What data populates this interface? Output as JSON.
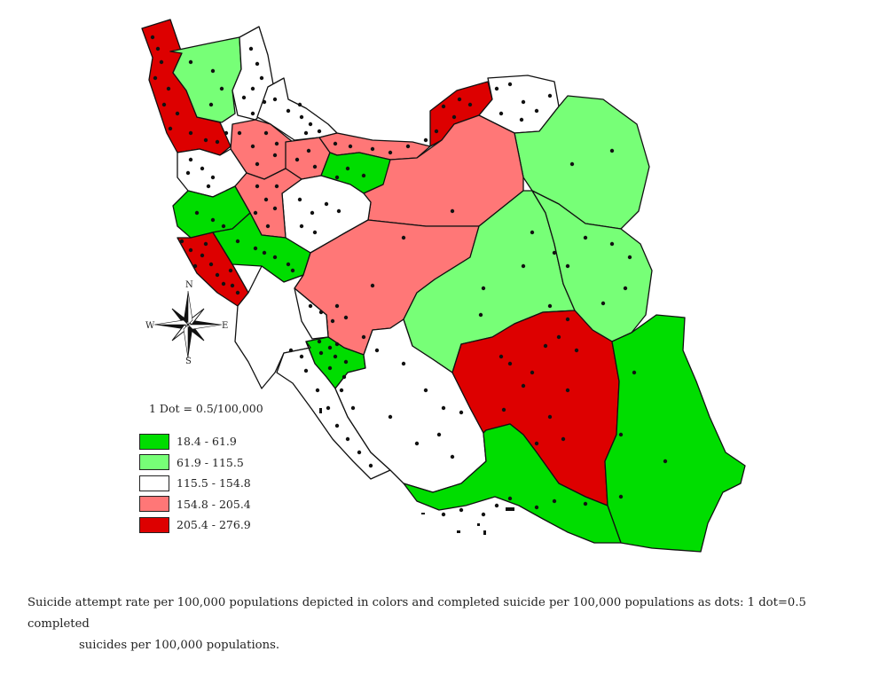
{
  "colors": {
    "dark_green": "#00dd00",
    "light_green": "#77ff77",
    "white": "#ffffff",
    "pink": "#ff7777",
    "dark_red": "#dd0000"
  },
  "compass": {
    "n": "N",
    "s": "S",
    "e": "E",
    "w": "W"
  },
  "dot_note": "1 Dot = 0.5/100,000",
  "legend": [
    {
      "label": "18.4 - 61.9",
      "color": "#00dd00"
    },
    {
      "label": "61.9 - 115.5",
      "color": "#77ff77"
    },
    {
      "label": "115.5 - 154.8",
      "color": "#ffffff"
    },
    {
      "label": "154.8 - 205.4",
      "color": "#ff7777"
    },
    {
      "label": "205.4 - 276.9",
      "color": "#dd0000"
    }
  ],
  "caption": {
    "line1": "Suicide attempt rate per 100,000 populations depicted in colors and completed suicide per 100,000 populations as dots: 1 dot=0.5 completed",
    "line2": "suicides per 100,000 populations."
  }
}
